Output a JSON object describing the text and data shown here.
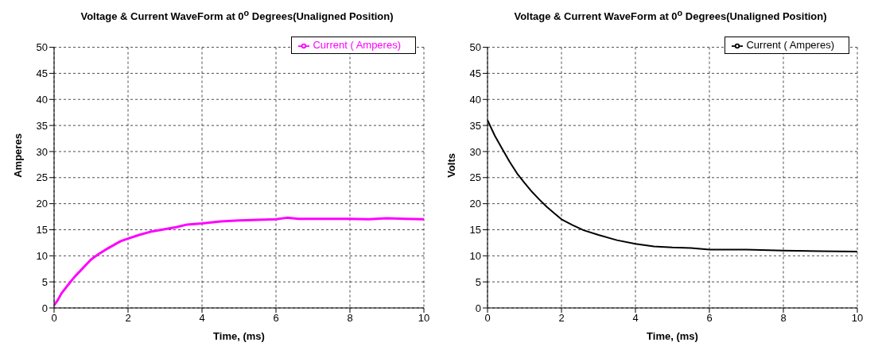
{
  "chart_data": [
    {
      "type": "line",
      "title": "Voltage & Current WaveForm at 0$^{o}$ Degrees(Unaligned Position)",
      "xlabel": "Time, (ms)",
      "ylabel": "Amperes",
      "x": [
        0,
        0.1,
        0.2,
        0.3,
        0.4,
        0.5,
        0.6,
        0.8,
        1,
        1.2,
        1.4,
        1.6,
        1.8,
        2,
        2.3,
        2.6,
        3,
        3.3,
        3.6,
        4,
        4.5,
        5,
        5.5,
        6,
        6.3,
        6.6,
        7,
        7.5,
        8,
        8.5,
        9,
        9.5,
        10
      ],
      "series": [
        {
          "name": "Current ( Amperes)",
          "color": "#ff00ff",
          "values": [
            0.5,
            1.5,
            2.8,
            3.7,
            4.6,
            5.5,
            6.3,
            7.8,
            9.3,
            10.3,
            11.2,
            12,
            12.8,
            13.3,
            14,
            14.6,
            15.1,
            15.5,
            16,
            16.2,
            16.6,
            16.8,
            16.9,
            17,
            17.3,
            17.1,
            17.1,
            17.1,
            17.1,
            17,
            17.2,
            17.1,
            17
          ]
        }
      ],
      "xlim": [
        0,
        10
      ],
      "xticks": [
        0,
        2,
        4,
        6,
        8,
        10
      ],
      "ylim": [
        0,
        50
      ],
      "yticks": [
        0,
        5,
        10,
        15,
        20,
        25,
        30,
        35,
        40,
        45,
        50
      ],
      "grid": true,
      "legend": "top right"
    },
    {
      "type": "line",
      "title": "Voltage & Current WaveForm at 0$^{o}$ Degrees(Unaligned Position)",
      "xlabel": "Time, (ms)",
      "ylabel": "Volts",
      "x": [
        0,
        0.2,
        0.4,
        0.6,
        0.8,
        1,
        1.2,
        1.4,
        1.6,
        1.8,
        2,
        2.3,
        2.6,
        3,
        3.5,
        4,
        4.5,
        5,
        5.5,
        6,
        7,
        8,
        9,
        10
      ],
      "series": [
        {
          "name": "Current ( Amperes)",
          "color": "#000000",
          "values": [
            36,
            33,
            30.5,
            28,
            25.8,
            24,
            22.3,
            20.8,
            19.4,
            18.2,
            17,
            15.9,
            14.9,
            14,
            13,
            12.3,
            11.8,
            11.6,
            11.5,
            11.2,
            11.2,
            11,
            10.9,
            10.8
          ]
        }
      ],
      "xlim": [
        0,
        10
      ],
      "xticks": [
        0,
        2,
        4,
        6,
        8,
        10
      ],
      "ylim": [
        0,
        50
      ],
      "yticks": [
        0,
        5,
        10,
        15,
        20,
        25,
        30,
        35,
        40,
        45,
        50
      ],
      "grid": true,
      "legend": "top right"
    }
  ]
}
